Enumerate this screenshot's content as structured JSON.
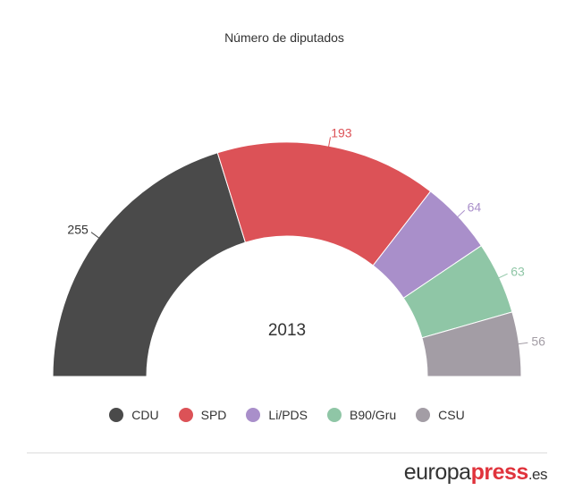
{
  "chart_data": {
    "type": "pie",
    "subtype": "semicircle-donut",
    "title": "Número de diputados",
    "center_label": "2013",
    "categories": [
      "CDU",
      "SPD",
      "Li/PDS",
      "B90/Gru",
      "CSU"
    ],
    "values": [
      255,
      193,
      64,
      63,
      56
    ],
    "colors": [
      "#4a4a4a",
      "#dc5257",
      "#a98fca",
      "#8fc6a6",
      "#a39da5"
    ],
    "legend_position": "bottom"
  },
  "brand": {
    "part1": "europa",
    "part2": "press",
    "part3": ".es"
  }
}
